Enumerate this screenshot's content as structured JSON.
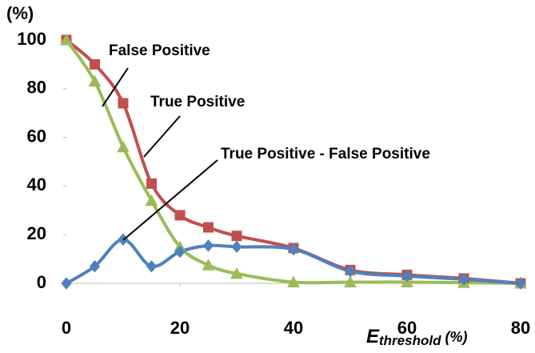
{
  "chart_data": {
    "type": "line",
    "ylabel": "(%)",
    "xlabel": {
      "main": "E",
      "sub": "threshold",
      "unit": "(%)"
    },
    "annotations": [
      "False Positive",
      "True Positive",
      "True Positive - False Positive"
    ],
    "x": [
      0,
      5,
      10,
      15,
      20,
      25,
      30,
      40,
      50,
      60,
      70,
      80
    ],
    "series": [
      {
        "name": "True Positive",
        "color": "#c0504d",
        "marker": "square",
        "values": [
          100,
          90,
          74,
          41,
          28,
          23,
          19.5,
          14.5,
          5.5,
          3.5,
          2,
          0
        ]
      },
      {
        "name": "False Positive",
        "color": "#9bbb59",
        "marker": "triangle",
        "values": [
          100,
          83,
          56,
          34,
          15,
          7.5,
          4,
          0.5,
          0.5,
          0.5,
          0.3,
          0
        ]
      },
      {
        "name": "True Positive - False Positive",
        "color": "#4f81bd",
        "marker": "diamond",
        "values": [
          0,
          7,
          18,
          7,
          13,
          15.5,
          15,
          14,
          5,
          3,
          1.7,
          0
        ]
      }
    ],
    "xlim": [
      0,
      80
    ],
    "xticks": [
      0,
      20,
      40,
      60,
      80
    ],
    "ylim": [
      0,
      100
    ],
    "yticks": [
      0,
      20,
      40,
      60,
      80,
      100
    ],
    "grid": false
  }
}
